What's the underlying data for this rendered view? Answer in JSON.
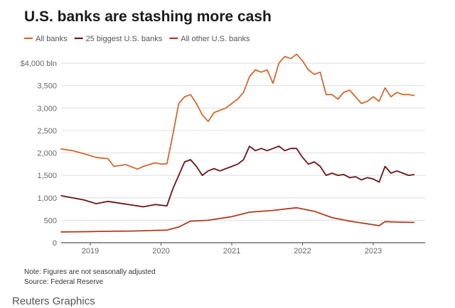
{
  "chart_data": {
    "type": "line",
    "title": "U.S. banks are stashing more cash",
    "ylabel": "",
    "xlabel": "",
    "ylim": [
      0,
      4000
    ],
    "yticks": [
      {
        "value": 0,
        "label": "0"
      },
      {
        "value": 500,
        "label": "500"
      },
      {
        "value": 1000,
        "label": "1,000"
      },
      {
        "value": 1500,
        "label": "1,500"
      },
      {
        "value": 2000,
        "label": "2,000"
      },
      {
        "value": 2500,
        "label": "2,500"
      },
      {
        "value": 3000,
        "label": "3,000"
      },
      {
        "value": 3500,
        "label": "3,500"
      },
      {
        "value": 4000,
        "label": "$4,000 bln"
      }
    ],
    "xlim": [
      "2018-08",
      "2023-09"
    ],
    "xticks": [
      "2019",
      "2020",
      "2021",
      "2022",
      "2023"
    ],
    "grid": true,
    "legend_placement": "top-left",
    "series": [
      {
        "name": "All banks",
        "color": "#d2692f",
        "points": [
          [
            "2018-08",
            2090
          ],
          [
            "2018-10",
            2050
          ],
          [
            "2018-12",
            1980
          ],
          [
            "2019-02",
            1900
          ],
          [
            "2019-04",
            1870
          ],
          [
            "2019-05",
            1700
          ],
          [
            "2019-07",
            1740
          ],
          [
            "2019-09",
            1640
          ],
          [
            "2019-10",
            1700
          ],
          [
            "2019-12",
            1780
          ],
          [
            "2020-01",
            1750
          ],
          [
            "2020-02",
            1760
          ],
          [
            "2020-03",
            2400
          ],
          [
            "2020-04",
            3100
          ],
          [
            "2020-05",
            3250
          ],
          [
            "2020-06",
            3300
          ],
          [
            "2020-07",
            3100
          ],
          [
            "2020-08",
            2850
          ],
          [
            "2020-09",
            2700
          ],
          [
            "2020-10",
            2900
          ],
          [
            "2020-11",
            2950
          ],
          [
            "2020-12",
            3000
          ],
          [
            "2021-01",
            3100
          ],
          [
            "2021-02",
            3200
          ],
          [
            "2021-03",
            3350
          ],
          [
            "2021-04",
            3700
          ],
          [
            "2021-05",
            3850
          ],
          [
            "2021-06",
            3800
          ],
          [
            "2021-07",
            3850
          ],
          [
            "2021-08",
            3550
          ],
          [
            "2021-09",
            4000
          ],
          [
            "2021-10",
            4150
          ],
          [
            "2021-11",
            4100
          ],
          [
            "2021-12",
            4200
          ],
          [
            "2022-01",
            4050
          ],
          [
            "2022-02",
            3850
          ],
          [
            "2022-03",
            3750
          ],
          [
            "2022-04",
            3800
          ],
          [
            "2022-05",
            3300
          ],
          [
            "2022-06",
            3300
          ],
          [
            "2022-07",
            3200
          ],
          [
            "2022-08",
            3350
          ],
          [
            "2022-09",
            3400
          ],
          [
            "2022-10",
            3250
          ],
          [
            "2022-11",
            3100
          ],
          [
            "2022-12",
            3150
          ],
          [
            "2023-01",
            3250
          ],
          [
            "2023-02",
            3150
          ],
          [
            "2023-03",
            3450
          ],
          [
            "2023-04",
            3250
          ],
          [
            "2023-05",
            3350
          ],
          [
            "2023-06",
            3300
          ],
          [
            "2023-07",
            3300
          ],
          [
            "2023-08",
            3280
          ]
        ]
      },
      {
        "name": "25 biggest U.S. banks",
        "color": "#6b1414",
        "points": [
          [
            "2018-08",
            1050
          ],
          [
            "2018-10",
            1000
          ],
          [
            "2018-12",
            950
          ],
          [
            "2019-02",
            870
          ],
          [
            "2019-04",
            920
          ],
          [
            "2019-06",
            880
          ],
          [
            "2019-08",
            840
          ],
          [
            "2019-10",
            800
          ],
          [
            "2019-12",
            850
          ],
          [
            "2020-02",
            820
          ],
          [
            "2020-03",
            1200
          ],
          [
            "2020-04",
            1500
          ],
          [
            "2020-05",
            1800
          ],
          [
            "2020-06",
            1850
          ],
          [
            "2020-07",
            1700
          ],
          [
            "2020-08",
            1500
          ],
          [
            "2020-09",
            1600
          ],
          [
            "2020-10",
            1650
          ],
          [
            "2020-11",
            1600
          ],
          [
            "2020-12",
            1650
          ],
          [
            "2021-01",
            1700
          ],
          [
            "2021-02",
            1750
          ],
          [
            "2021-03",
            1850
          ],
          [
            "2021-04",
            2150
          ],
          [
            "2021-05",
            2050
          ],
          [
            "2021-06",
            2100
          ],
          [
            "2021-07",
            2050
          ],
          [
            "2021-08",
            2100
          ],
          [
            "2021-09",
            2150
          ],
          [
            "2021-10",
            2050
          ],
          [
            "2021-11",
            2100
          ],
          [
            "2021-12",
            2100
          ],
          [
            "2022-01",
            1900
          ],
          [
            "2022-02",
            1750
          ],
          [
            "2022-03",
            1800
          ],
          [
            "2022-04",
            1700
          ],
          [
            "2022-05",
            1500
          ],
          [
            "2022-06",
            1550
          ],
          [
            "2022-07",
            1500
          ],
          [
            "2022-08",
            1520
          ],
          [
            "2022-09",
            1450
          ],
          [
            "2022-10",
            1470
          ],
          [
            "2022-11",
            1400
          ],
          [
            "2022-12",
            1450
          ],
          [
            "2023-01",
            1420
          ],
          [
            "2023-02",
            1350
          ],
          [
            "2023-03",
            1700
          ],
          [
            "2023-04",
            1550
          ],
          [
            "2023-05",
            1600
          ],
          [
            "2023-06",
            1550
          ],
          [
            "2023-07",
            1500
          ],
          [
            "2023-08",
            1520
          ]
        ]
      },
      {
        "name": "All other U.S. banks",
        "color": "#b03a1e",
        "points": [
          [
            "2018-08",
            240
          ],
          [
            "2018-12",
            245
          ],
          [
            "2019-04",
            255
          ],
          [
            "2019-08",
            260
          ],
          [
            "2019-12",
            275
          ],
          [
            "2020-02",
            280
          ],
          [
            "2020-04",
            350
          ],
          [
            "2020-06",
            480
          ],
          [
            "2020-09",
            500
          ],
          [
            "2021-01",
            580
          ],
          [
            "2021-04",
            680
          ],
          [
            "2021-08",
            720
          ],
          [
            "2021-12",
            780
          ],
          [
            "2022-03",
            700
          ],
          [
            "2022-06",
            560
          ],
          [
            "2022-09",
            480
          ],
          [
            "2022-12",
            420
          ],
          [
            "2023-02",
            380
          ],
          [
            "2023-03",
            470
          ],
          [
            "2023-05",
            460
          ],
          [
            "2023-08",
            450
          ]
        ]
      }
    ]
  },
  "notes": {
    "note": "Note: Figures are not seasonally adjusted",
    "source": "Source: Federal Reserve"
  },
  "brand": "Reuters Graphics"
}
